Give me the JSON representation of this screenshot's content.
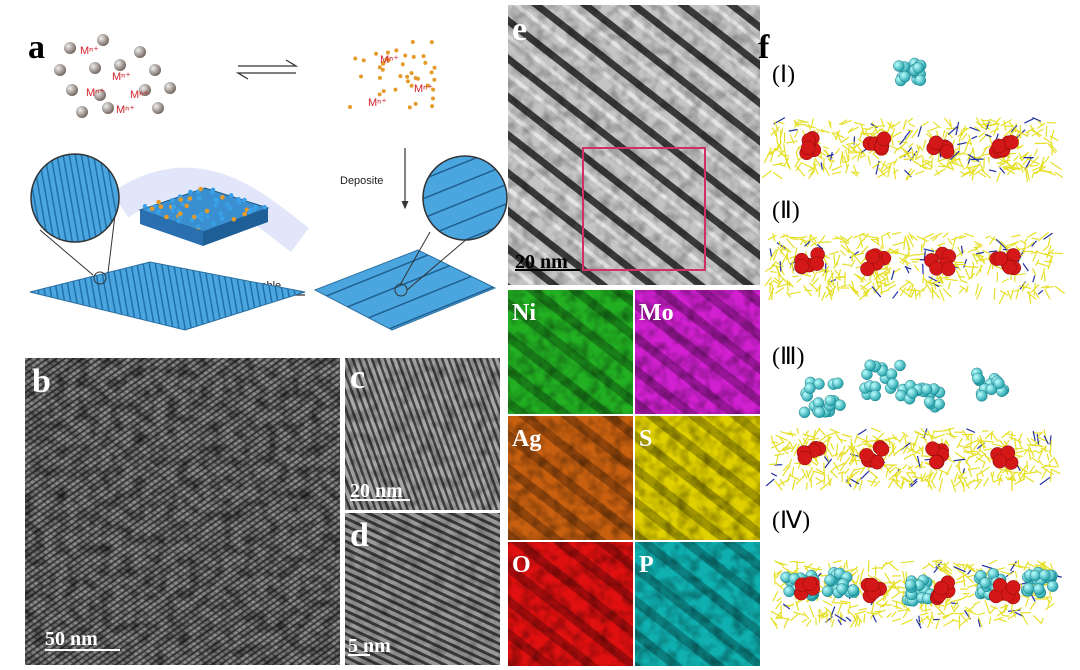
{
  "panel_a": {
    "label": "a",
    "ions_left": [
      "Mⁿ⁺",
      "Mⁿ⁺",
      "Mⁿ⁺",
      "Mⁿ⁺",
      "Mⁿ⁺"
    ],
    "ions_right": [
      "Mⁿ⁺",
      "Mⁿ⁺",
      "Mⁿ⁺"
    ],
    "step_down": "Deposite",
    "step_left": "Reassemble"
  },
  "panel_b": {
    "label": "b",
    "scale_bar": "50 nm"
  },
  "panel_c": {
    "label": "c",
    "scale_bar": "20 nm"
  },
  "panel_d": {
    "label": "d",
    "scale_bar": "5 nm"
  },
  "panel_e": {
    "label": "e",
    "scale_bar": "20 nm",
    "maps": [
      "Ni",
      "Mo",
      "Ag",
      "S",
      "O",
      "P"
    ]
  },
  "panel_f": {
    "label": "f",
    "stages": [
      "(Ⅰ)",
      "(Ⅱ)",
      "(Ⅲ)",
      "(Ⅳ)"
    ]
  }
}
